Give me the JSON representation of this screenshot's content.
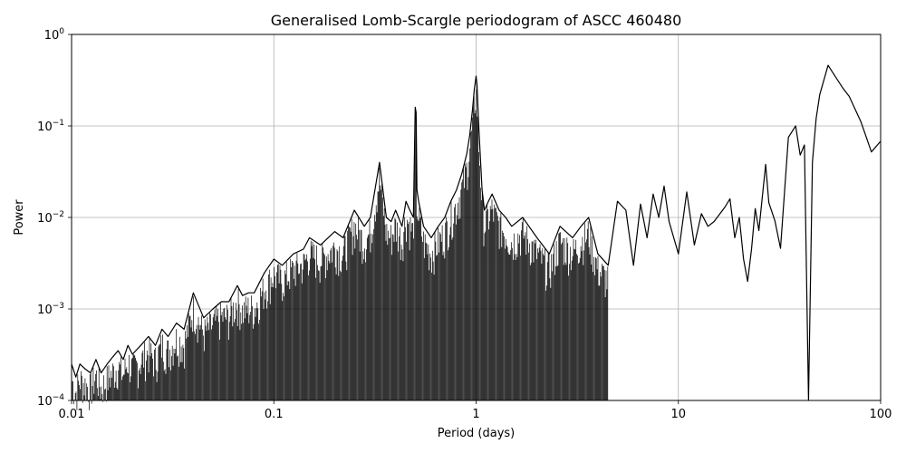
{
  "chart_data": {
    "type": "line",
    "title": "Generalised Lomb-Scargle periodogram of ASCC 460480",
    "xlabel": "Period (days)",
    "ylabel": "Power",
    "xscale": "log",
    "yscale": "log",
    "xlim": [
      0.01,
      100
    ],
    "ylim": [
      0.0001,
      1
    ],
    "grid": true,
    "line_color": "#000000",
    "x_ticks": [
      {
        "value": 0.01,
        "label": "0.01"
      },
      {
        "value": 0.1,
        "label": "0.1"
      },
      {
        "value": 1,
        "label": "1"
      },
      {
        "value": 10,
        "label": "10"
      },
      {
        "value": 100,
        "label": "100"
      }
    ],
    "y_ticks": [
      {
        "value": 0.0001,
        "base": "10",
        "exp": "−4"
      },
      {
        "value": 0.001,
        "base": "10",
        "exp": "−3"
      },
      {
        "value": 0.01,
        "base": "10",
        "exp": "−2"
      },
      {
        "value": 0.1,
        "base": "10",
        "exp": "−1"
      },
      {
        "value": 1,
        "base": "10",
        "exp": "0"
      }
    ],
    "series": [
      {
        "x": [
          0.01,
          0.0105,
          0.011,
          0.0117,
          0.0124,
          0.0132,
          0.014,
          0.015,
          0.016,
          0.017,
          0.018,
          0.019,
          0.02,
          0.022,
          0.024,
          0.026,
          0.028,
          0.03,
          0.033,
          0.036,
          0.04,
          0.045,
          0.05,
          0.055,
          0.06,
          0.066,
          0.07,
          0.075,
          0.08,
          0.09,
          0.1,
          0.11,
          0.125,
          0.14,
          0.15,
          0.17,
          0.2,
          0.22,
          0.25,
          0.28,
          0.3,
          0.333,
          0.36,
          0.38,
          0.4,
          0.43,
          0.45,
          0.47,
          0.49,
          0.5,
          0.505,
          0.51,
          0.52,
          0.55,
          0.6,
          0.65,
          0.7,
          0.75,
          0.8,
          0.85,
          0.9,
          0.93,
          0.96,
          0.98,
          1.0,
          1.01,
          1.03,
          1.07,
          1.1,
          1.15,
          1.2,
          1.3,
          1.4,
          1.5,
          1.7,
          2.0,
          2.3,
          2.6,
          3.0,
          3.3,
          3.6,
          4.0,
          4.5,
          5.0,
          5.5,
          6.0,
          6.5,
          7.0,
          7.5,
          8.0,
          8.5,
          9.0,
          10.0,
          11.0,
          12.0,
          13.0,
          14.0,
          15.0,
          17.0,
          18.0,
          19.0,
          20.0,
          21.0,
          22.0,
          23.0,
          24.0,
          25.0,
          27.0,
          28.0,
          30.0,
          32.0,
          35.0,
          38.0,
          40.0,
          42.0,
          44.0,
          46.0,
          48.0,
          50.0,
          55.0,
          60.0,
          65.0,
          70.0,
          80.0,
          90.0,
          100.0
        ],
        "y": [
          0.00025,
          0.00018,
          0.00025,
          0.00022,
          0.0002,
          0.00028,
          0.0002,
          0.00025,
          0.0003,
          0.00035,
          0.00028,
          0.0004,
          0.00032,
          0.0004,
          0.0005,
          0.0004,
          0.0006,
          0.0005,
          0.0007,
          0.0006,
          0.0015,
          0.0008,
          0.001,
          0.0012,
          0.0012,
          0.0018,
          0.0014,
          0.0015,
          0.0015,
          0.0025,
          0.0035,
          0.003,
          0.004,
          0.0045,
          0.006,
          0.005,
          0.007,
          0.006,
          0.012,
          0.008,
          0.01,
          0.04,
          0.01,
          0.009,
          0.012,
          0.008,
          0.015,
          0.012,
          0.01,
          0.16,
          0.14,
          0.02,
          0.015,
          0.008,
          0.006,
          0.008,
          0.01,
          0.015,
          0.02,
          0.03,
          0.05,
          0.08,
          0.15,
          0.25,
          0.35,
          0.28,
          0.1,
          0.02,
          0.012,
          0.015,
          0.018,
          0.012,
          0.01,
          0.008,
          0.01,
          0.006,
          0.004,
          0.008,
          0.006,
          0.008,
          0.01,
          0.004,
          0.003,
          0.015,
          0.012,
          0.003,
          0.014,
          0.006,
          0.018,
          0.01,
          0.022,
          0.009,
          0.004,
          0.019,
          0.005,
          0.011,
          0.008,
          0.009,
          0.013,
          0.016,
          0.006,
          0.01,
          0.0035,
          0.002,
          0.0045,
          0.0125,
          0.0072,
          0.038,
          0.0145,
          0.0092,
          0.0046,
          0.075,
          0.1,
          0.048,
          0.062,
          0.0001,
          0.04,
          0.12,
          0.22,
          0.46,
          0.34,
          0.26,
          0.21,
          0.11,
          0.052,
          0.068
        ]
      }
    ]
  }
}
